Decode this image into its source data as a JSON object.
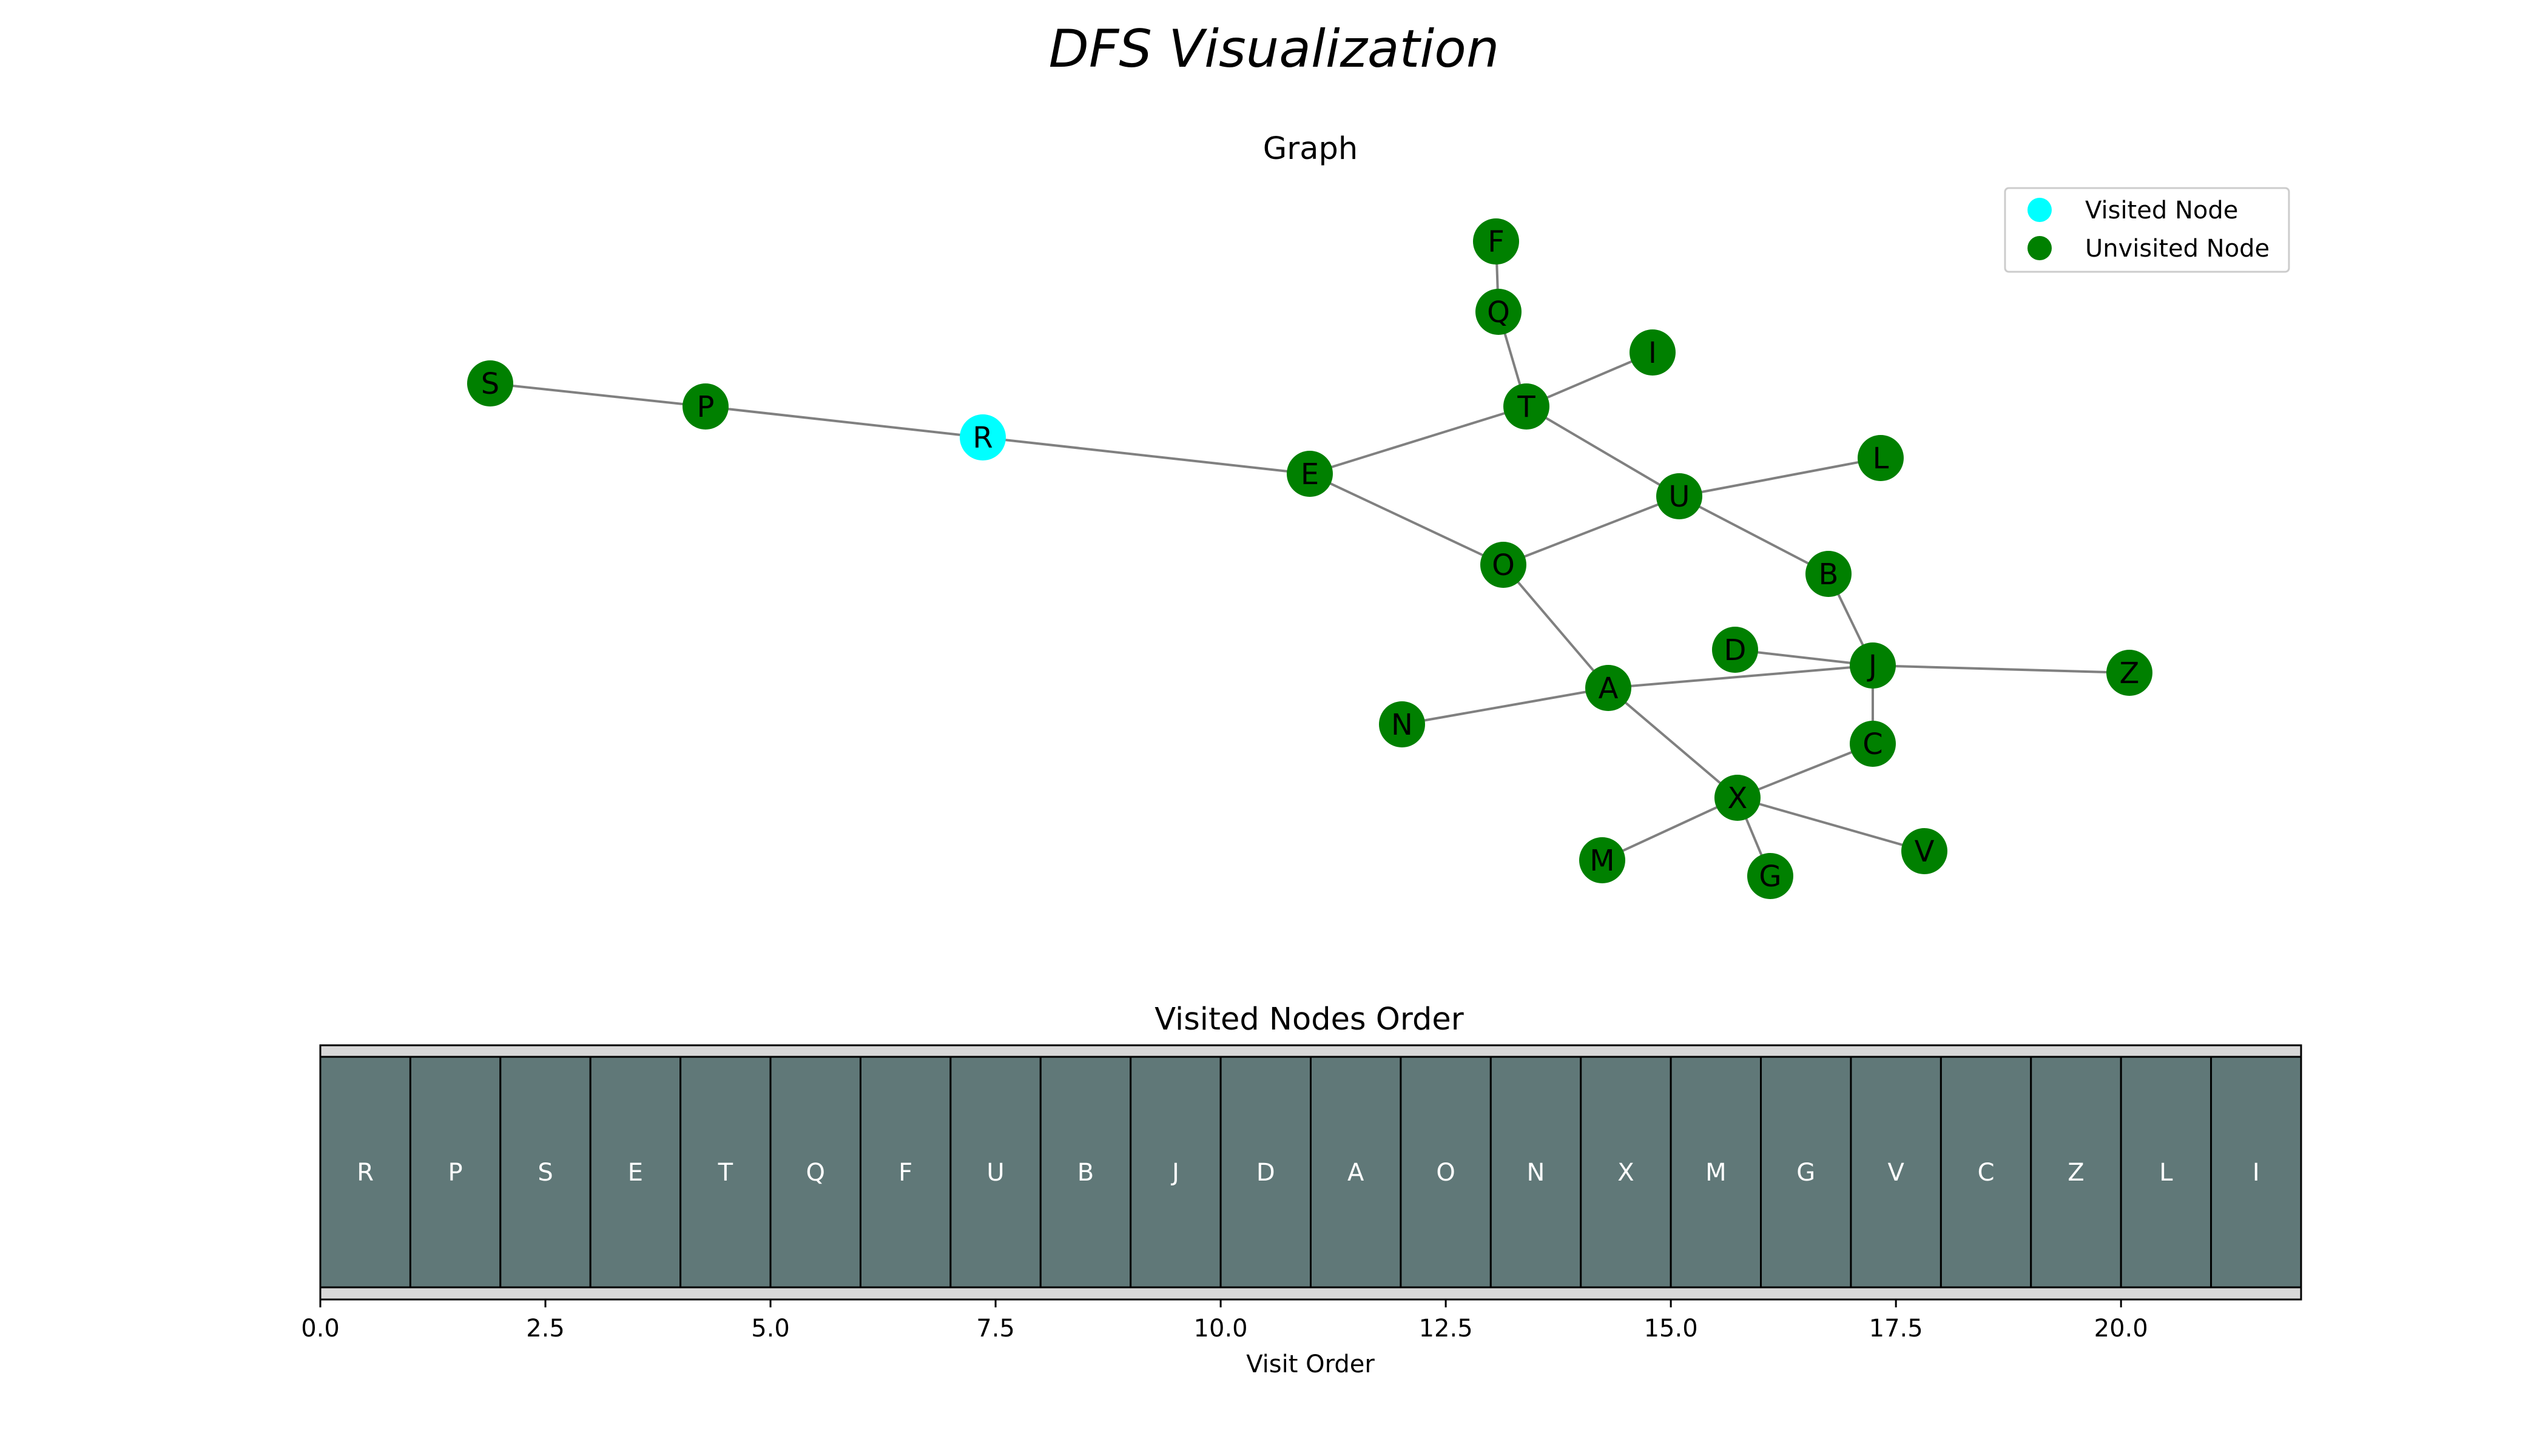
{
  "figure": {
    "title": "DFS Visualization"
  },
  "graph_panel": {
    "title": "Graph",
    "legend": [
      {
        "label": "Visited Node",
        "color": "#00ffff"
      },
      {
        "label": "Unvisited Node",
        "color": "#008000"
      }
    ]
  },
  "order_panel": {
    "title": "Visited Nodes Order",
    "xlabel": "Visit Order"
  },
  "colors": {
    "visited": "#00ffff",
    "unvisited": "#008000",
    "edge": "#808080",
    "cell_fill": "#607878",
    "cell_text": "#ffffff",
    "strip_bg": "#d8d8d8"
  },
  "chart_data": [
    {
      "type": "network",
      "title": "Graph",
      "nodes": [
        {
          "id": "S",
          "state": "unvisited"
        },
        {
          "id": "P",
          "state": "unvisited"
        },
        {
          "id": "R",
          "state": "visited"
        },
        {
          "id": "E",
          "state": "unvisited"
        },
        {
          "id": "T",
          "state": "unvisited"
        },
        {
          "id": "Q",
          "state": "unvisited"
        },
        {
          "id": "F",
          "state": "unvisited"
        },
        {
          "id": "I",
          "state": "unvisited"
        },
        {
          "id": "U",
          "state": "unvisited"
        },
        {
          "id": "L",
          "state": "unvisited"
        },
        {
          "id": "O",
          "state": "unvisited"
        },
        {
          "id": "B",
          "state": "unvisited"
        },
        {
          "id": "J",
          "state": "unvisited"
        },
        {
          "id": "D",
          "state": "unvisited"
        },
        {
          "id": "Z",
          "state": "unvisited"
        },
        {
          "id": "A",
          "state": "unvisited"
        },
        {
          "id": "N",
          "state": "unvisited"
        },
        {
          "id": "C",
          "state": "unvisited"
        },
        {
          "id": "X",
          "state": "unvisited"
        },
        {
          "id": "M",
          "state": "unvisited"
        },
        {
          "id": "G",
          "state": "unvisited"
        },
        {
          "id": "V",
          "state": "unvisited"
        }
      ],
      "edges": [
        [
          "S",
          "P"
        ],
        [
          "P",
          "R"
        ],
        [
          "R",
          "E"
        ],
        [
          "E",
          "T"
        ],
        [
          "E",
          "O"
        ],
        [
          "T",
          "Q"
        ],
        [
          "Q",
          "F"
        ],
        [
          "T",
          "I"
        ],
        [
          "T",
          "U"
        ],
        [
          "U",
          "L"
        ],
        [
          "U",
          "O"
        ],
        [
          "U",
          "B"
        ],
        [
          "B",
          "J"
        ],
        [
          "O",
          "A"
        ],
        [
          "D",
          "J"
        ],
        [
          "J",
          "Z"
        ],
        [
          "A",
          "J"
        ],
        [
          "N",
          "A"
        ],
        [
          "J",
          "C"
        ],
        [
          "A",
          "X"
        ],
        [
          "X",
          "C"
        ],
        [
          "X",
          "M"
        ],
        [
          "X",
          "G"
        ],
        [
          "X",
          "V"
        ]
      ],
      "legend": [
        "Visited Node",
        "Unvisited Node"
      ]
    },
    {
      "type": "bar",
      "title": "Visited Nodes Order",
      "xlabel": "Visit Order",
      "categories": [
        "R",
        "P",
        "S",
        "E",
        "T",
        "Q",
        "F",
        "U",
        "B",
        "J",
        "D",
        "A",
        "O",
        "N",
        "X",
        "M",
        "G",
        "V",
        "C",
        "Z",
        "L",
        "I"
      ],
      "xlim": [
        0,
        22
      ],
      "xticks": [
        "0.0",
        "2.5",
        "5.0",
        "7.5",
        "10.0",
        "12.5",
        "15.0",
        "17.5",
        "20.0"
      ]
    }
  ]
}
